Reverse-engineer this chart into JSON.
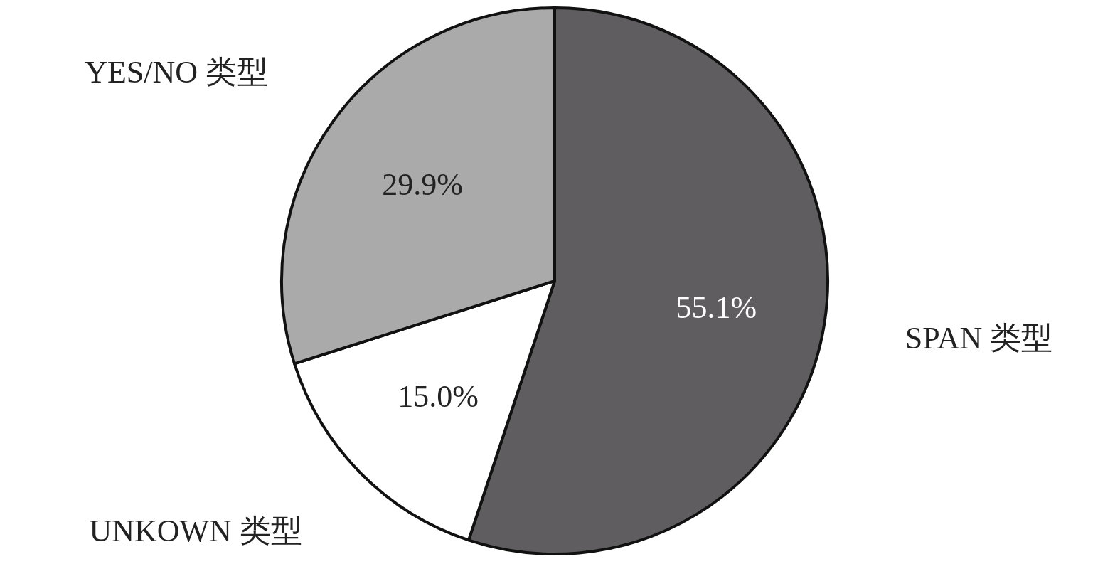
{
  "chart_data": {
    "type": "pie",
    "categories": [
      "SPAN 类型",
      "UNKOWN 类型",
      "YES/NO 类型"
    ],
    "values": [
      55.1,
      15.0,
      29.9
    ],
    "colors": [
      "#5f5d5f",
      "#ffffff",
      "#aaaaaa"
    ],
    "value_labels": [
      "55.1%",
      "15.0%",
      "29.9%"
    ]
  }
}
